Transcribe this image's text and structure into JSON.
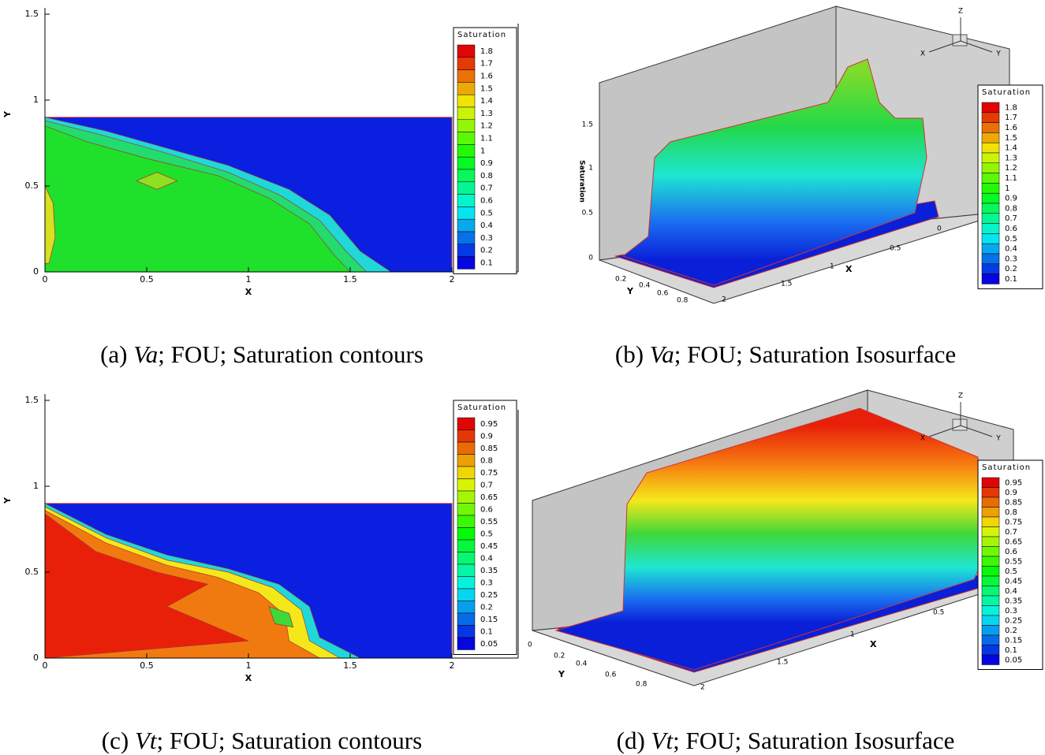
{
  "panels": [
    {
      "caption": {
        "label": "(a)",
        "model": "Va",
        "text": "; FOU; Saturation contours"
      },
      "xticks": [
        0,
        0.5,
        1,
        1.5,
        2
      ],
      "yticks": [
        0,
        0.5,
        1,
        1.5
      ],
      "xlabel": "X",
      "ylabel": "Y",
      "legend": {
        "title": "Saturation",
        "levels": [
          1.8,
          1.7,
          1.6,
          1.5,
          1.4,
          1.3,
          1.2,
          1.1,
          1,
          0.9,
          0.8,
          0.7,
          0.6,
          0.5,
          0.4,
          0.3,
          0.2,
          0.1
        ]
      }
    },
    {
      "caption": {
        "label": "(b)",
        "model": "Va",
        "text": "; FOU; Saturation Isosurface"
      },
      "zlabel": "Saturation",
      "zticks": [
        0,
        0.5,
        1,
        1.5
      ],
      "xticks": [
        0,
        0.5,
        1,
        1.5,
        2
      ],
      "yticks": [
        0.2,
        0.4,
        0.6,
        0.8
      ],
      "xlabel": "X",
      "ylabel": "Y",
      "orientation": [
        "X",
        "Y",
        "Z"
      ],
      "legend": {
        "title": "Saturation",
        "levels": [
          1.8,
          1.7,
          1.6,
          1.5,
          1.4,
          1.3,
          1.2,
          1.1,
          1,
          0.9,
          0.8,
          0.7,
          0.6,
          0.5,
          0.4,
          0.3,
          0.2,
          0.1
        ]
      }
    },
    {
      "caption": {
        "label": "(c)",
        "model": "Vt",
        "text": "; FOU; Saturation contours"
      },
      "xticks": [
        0,
        0.5,
        1,
        1.5,
        2
      ],
      "yticks": [
        0,
        0.5,
        1,
        1.5
      ],
      "xlabel": "X",
      "ylabel": "Y",
      "legend": {
        "title": "Saturation",
        "levels": [
          0.95,
          0.9,
          0.85,
          0.8,
          0.75,
          0.7,
          0.65,
          0.6,
          0.55,
          0.5,
          0.45,
          0.4,
          0.35,
          0.3,
          0.25,
          0.2,
          0.15,
          0.1,
          0.05
        ]
      }
    },
    {
      "caption": {
        "label": "(d)",
        "model": "Vt",
        "text": "; FOU; Saturation Isosurface"
      },
      "xticks": [
        0.5,
        1,
        1.5,
        2
      ],
      "yticks": [
        0,
        0.2,
        0.4,
        0.6,
        0.8
      ],
      "xlabel": "X",
      "ylabel": "Y",
      "orientation": [
        "X",
        "Y",
        "Z"
      ],
      "legend": {
        "title": "Saturation",
        "levels": [
          0.95,
          0.9,
          0.85,
          0.8,
          0.75,
          0.7,
          0.65,
          0.6,
          0.55,
          0.5,
          0.45,
          0.4,
          0.35,
          0.3,
          0.25,
          0.2,
          0.15,
          0.1,
          0.05
        ]
      }
    }
  ]
}
